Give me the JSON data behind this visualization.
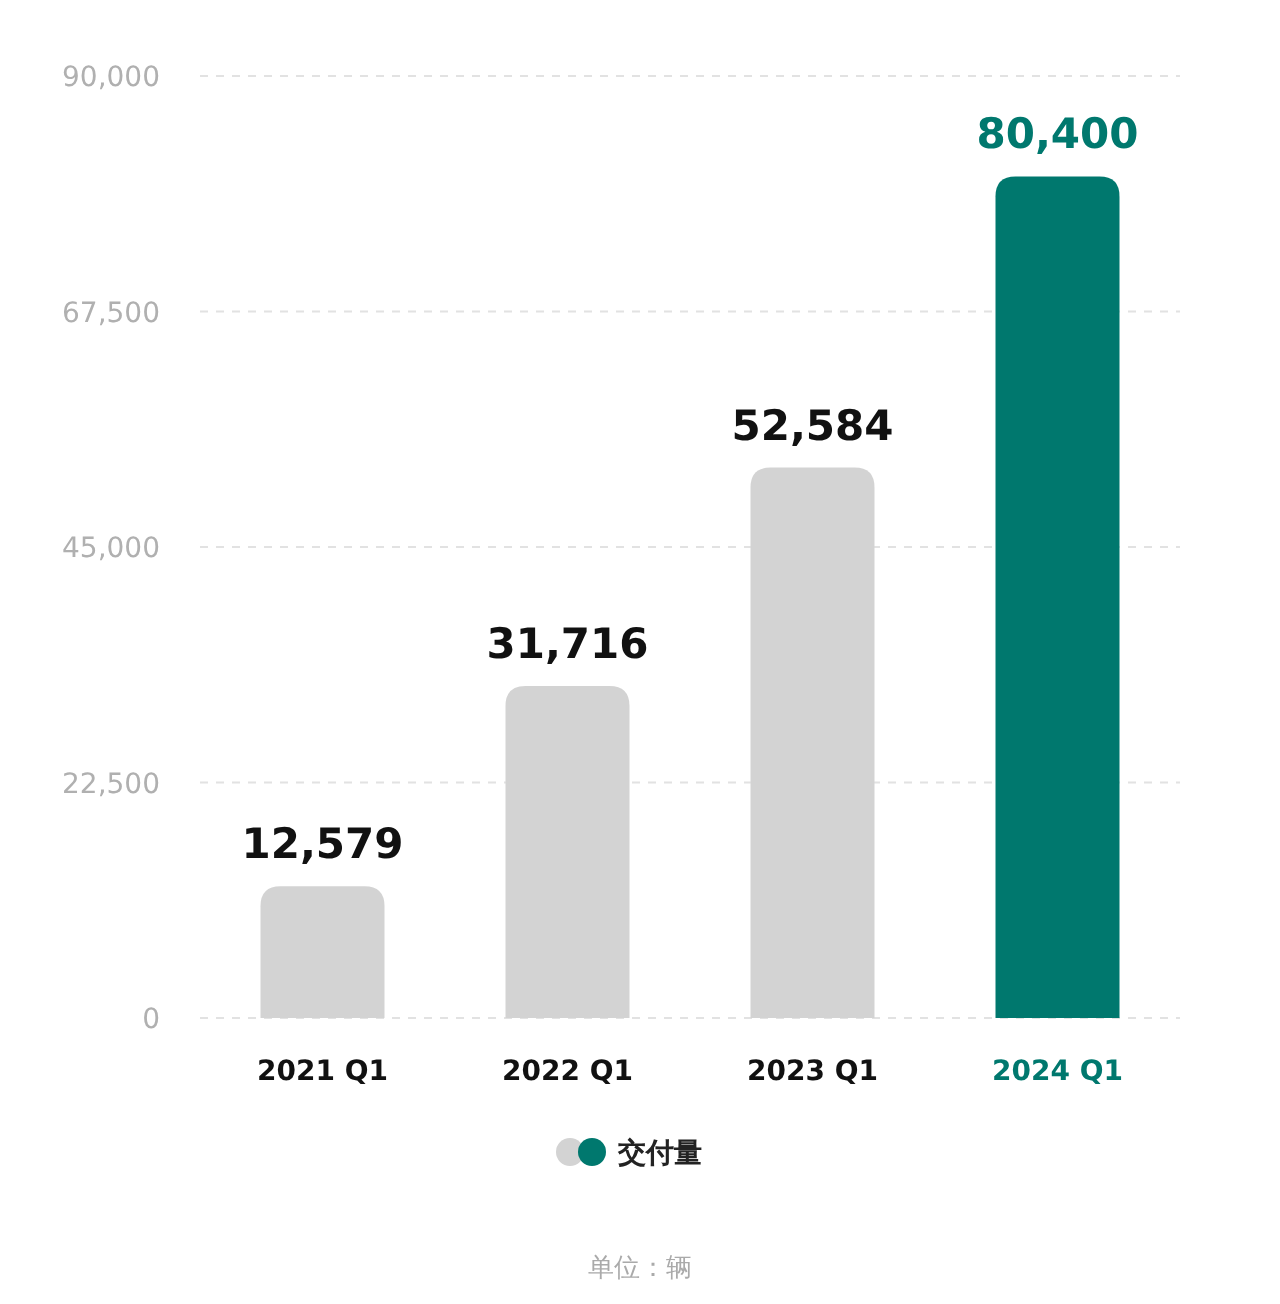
{
  "chart_data": {
    "type": "bar",
    "categories": [
      "2021 Q1",
      "2022 Q1",
      "2023 Q1",
      "2024 Q1"
    ],
    "series": [
      {
        "name": "交付量",
        "colors": [
          "#d3d3d3",
          "#d3d3d3",
          "#d3d3d3",
          "#00786e"
        ],
        "values": [
          12579,
          31716,
          52584,
          80400
        ],
        "value_labels": [
          "12,579",
          "31,716",
          "52,584",
          "80,400"
        ]
      }
    ],
    "ylim": [
      0,
      90000
    ],
    "yticks": [
      {
        "value": 0,
        "label": "0"
      },
      {
        "value": 22500,
        "label": "22,500"
      },
      {
        "value": 45000,
        "label": "45,000"
      },
      {
        "value": 67500,
        "label": "67,500"
      },
      {
        "value": 90000,
        "label": "90,000"
      }
    ],
    "grid": "y",
    "legend": "bottom",
    "annotations": [
      "单位：辆"
    ]
  }
}
